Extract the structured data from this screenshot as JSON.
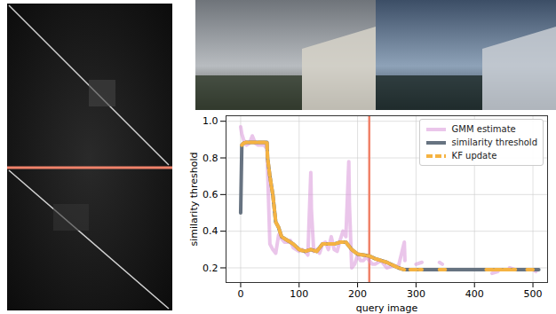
{
  "chart_data": {
    "type": "line",
    "xlabel": "query image",
    "ylabel": "similarity threshold",
    "xlim": [
      -25,
      525
    ],
    "xticks": [
      0,
      100,
      200,
      300,
      400,
      500
    ],
    "ylim": [
      0.12,
      1.03
    ],
    "yticks": [
      0.2,
      0.4,
      0.6,
      0.8,
      {
        "value": 1,
        "label": "1.0"
      }
    ],
    "grid": true,
    "legend": "upper right",
    "vline": {
      "x": 220,
      "color": "#f0826a"
    },
    "series": [
      {
        "name": "GMM estimate",
        "color": "#d896d8",
        "line_style": "solid",
        "x": [
          0,
          2,
          5,
          10,
          15,
          20,
          25,
          30,
          40,
          45,
          50,
          55,
          60,
          65,
          70,
          75,
          80,
          85,
          90,
          95,
          100,
          105,
          110,
          115,
          120,
          121,
          125,
          130,
          135,
          140,
          145,
          150,
          155,
          160,
          165,
          170,
          175,
          180,
          185,
          186,
          190,
          195,
          200,
          205,
          210,
          215,
          220,
          225,
          230,
          240,
          250,
          260,
          270,
          280,
          281,
          290,
          300,
          310,
          320,
          340,
          345,
          360,
          430,
          440,
          450,
          460,
          470,
          480,
          500,
          505
        ],
        "values": [
          0.97,
          0.93,
          0.9,
          0.87,
          0.88,
          0.92,
          0.88,
          0.87,
          0.87,
          0.85,
          0.33,
          0.3,
          0.28,
          0.38,
          0.36,
          0.34,
          0.34,
          0.35,
          0.31,
          0.3,
          0.29,
          0.3,
          0.29,
          0.27,
          0.72,
          0.52,
          0.29,
          0.3,
          0.28,
          0.33,
          0.34,
          0.3,
          0.37,
          0.3,
          0.29,
          0.35,
          0.4,
          0.37,
          0.78,
          0.55,
          0.2,
          0.22,
          0.27,
          0.24,
          0.24,
          0.26,
          0.24,
          0.22,
          0.22,
          0.24,
          0.2,
          0.21,
          0.21,
          0.34,
          0.24,
          null,
          0.22,
          0.23,
          null,
          0.23,
          0.22,
          null,
          0.17,
          0.18,
          null,
          0.2,
          0.19,
          null,
          0.19,
          0.18
        ]
      },
      {
        "name": "similarity threshold",
        "color": "#5f6b7a",
        "line_style": "solid",
        "x": [
          0,
          2,
          5,
          10,
          20,
          30,
          40,
          45,
          46,
          50,
          55,
          60,
          65,
          70,
          80,
          90,
          100,
          110,
          120,
          130,
          140,
          150,
          160,
          170,
          180,
          190,
          200,
          210,
          220,
          230,
          240,
          250,
          260,
          270,
          280,
          290,
          300,
          350,
          400,
          450,
          500,
          510
        ],
        "values": [
          0.5,
          0.87,
          0.88,
          0.885,
          0.885,
          0.885,
          0.885,
          0.885,
          0.8,
          0.7,
          0.6,
          0.45,
          0.42,
          0.37,
          0.35,
          0.33,
          0.3,
          0.29,
          0.3,
          0.29,
          0.33,
          0.33,
          0.33,
          0.34,
          0.34,
          0.3,
          0.275,
          0.27,
          0.265,
          0.25,
          0.24,
          0.23,
          0.215,
          0.2,
          0.19,
          0.19,
          0.19,
          0.19,
          0.19,
          0.19,
          0.19,
          0.19
        ]
      },
      {
        "name": "KF update",
        "color": "#f5b342",
        "line_style": "dashed",
        "x": [
          2,
          5,
          10,
          20,
          30,
          40,
          45,
          46,
          50,
          55,
          60,
          65,
          70,
          80,
          90,
          100,
          110,
          120,
          130,
          140,
          150,
          160,
          170,
          180,
          190,
          200,
          210,
          220,
          230,
          240,
          250,
          260,
          270,
          280,
          285,
          290,
          300,
          310,
          320,
          340,
          350,
          360,
          420,
          430,
          440,
          450,
          460,
          470,
          480,
          490,
          500,
          510
        ],
        "values": [
          0.87,
          0.88,
          0.885,
          0.885,
          0.885,
          0.885,
          0.885,
          0.8,
          0.7,
          0.6,
          0.45,
          0.42,
          0.37,
          0.35,
          0.33,
          0.3,
          0.29,
          0.3,
          0.29,
          0.33,
          0.33,
          0.33,
          0.34,
          0.34,
          0.3,
          0.275,
          0.27,
          0.265,
          0.25,
          0.24,
          0.23,
          0.215,
          0.2,
          0.19,
          null,
          0.19,
          0.19,
          0.19,
          null,
          0.19,
          0.19,
          null,
          0.19,
          0.19,
          0.19,
          0.19,
          0.19,
          0.19,
          null,
          0.19,
          0.19,
          null
        ]
      }
    ]
  }
}
